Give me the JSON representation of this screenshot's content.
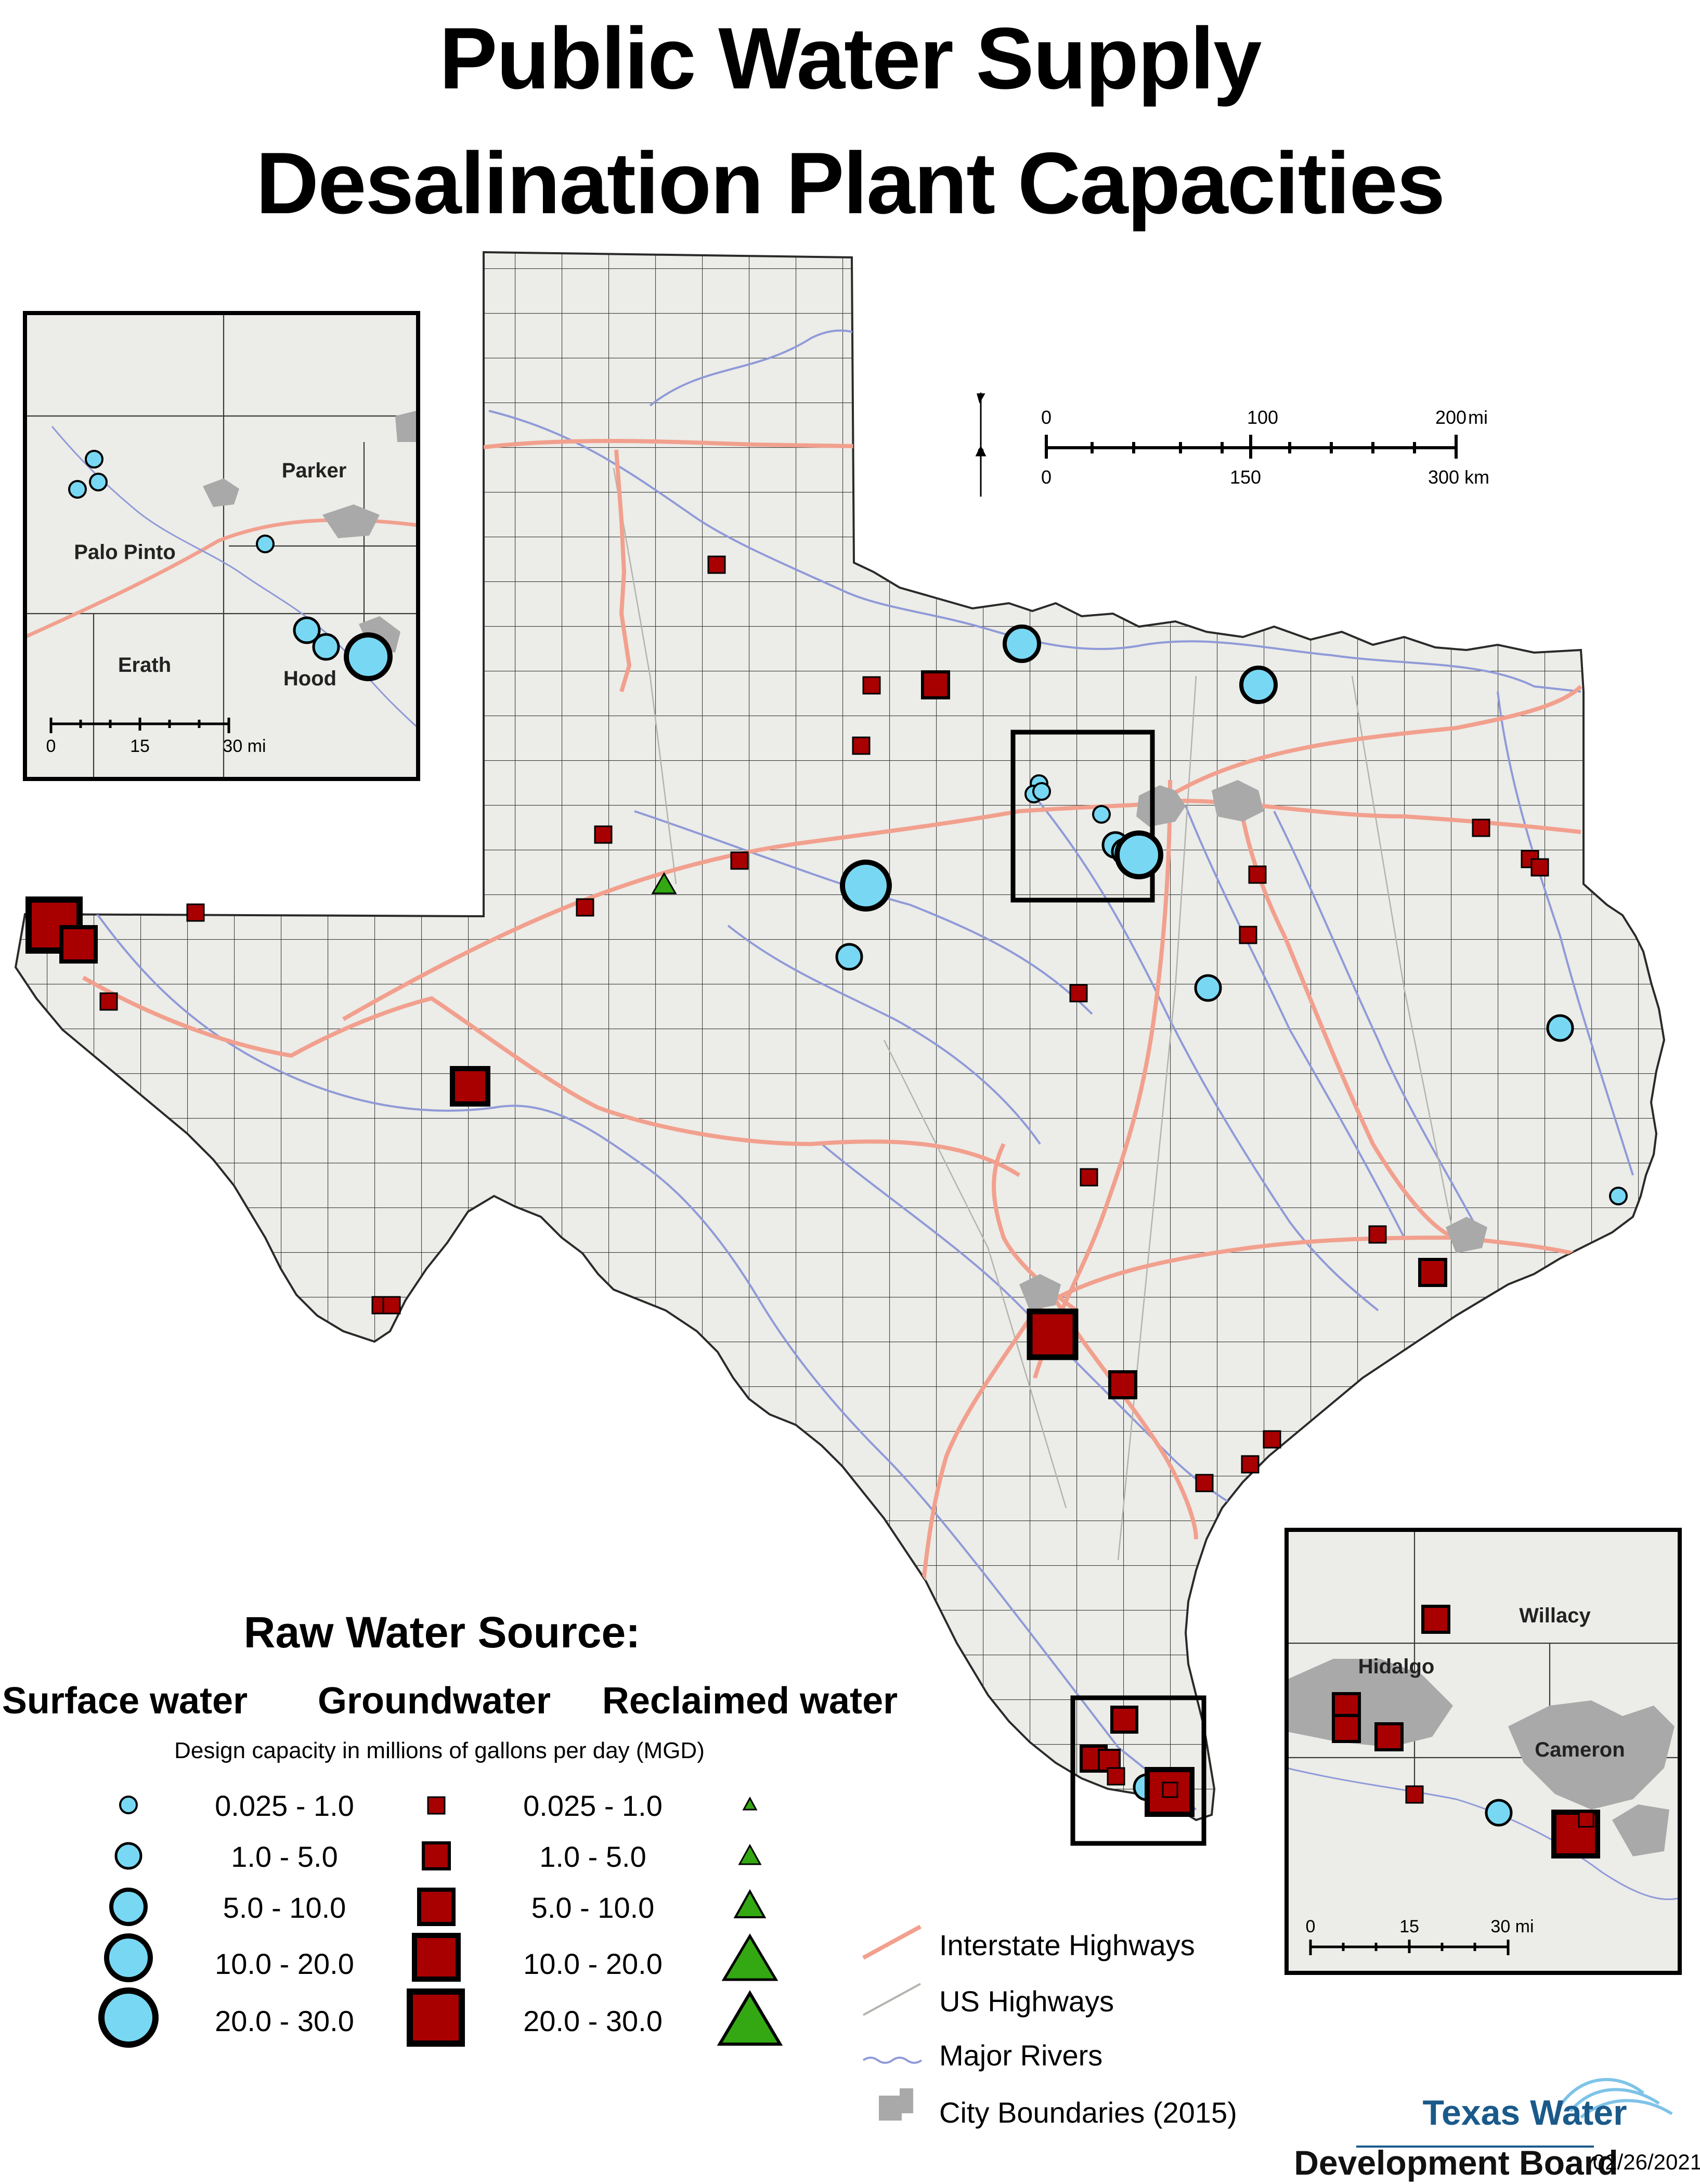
{
  "title": {
    "line1": "Public Water Supply",
    "line2": "Desalination Plant Capacities"
  },
  "colors": {
    "state_fill": "#ecece8",
    "county_line": "#3a3a3a",
    "interstate": "#f2a08e",
    "us_highway": "#b4b4ae",
    "river": "#8f9ad8",
    "city": "#a9a9a9",
    "surface_water": "#78d8f3",
    "groundwater": "#a80000",
    "reclaimed_water": "#33a812"
  },
  "scale_bar": {
    "mi": [
      "0",
      "100",
      "200"
    ],
    "mi_unit": "mi",
    "km": [
      "0",
      "150",
      "300 km"
    ]
  },
  "inset_dfw": {
    "counties": [
      "Parker",
      "Palo Pinto",
      "Erath",
      "Hood"
    ],
    "scale": [
      "0",
      "15",
      "30 mi"
    ]
  },
  "inset_rgv": {
    "counties": [
      "Willacy",
      "Hidalgo",
      "Cameron"
    ],
    "scale": [
      "0",
      "15",
      "30 mi"
    ]
  },
  "legend": {
    "heading": "Raw Water Source:",
    "columns": [
      "Surface water",
      "Groundwater",
      "Reclaimed water"
    ],
    "subheading": "Design capacity in millions of gallons per day (MGD)",
    "classes": [
      "0.025 - 1.0",
      "1.0 - 5.0",
      "5.0 - 10.0",
      "10.0 - 20.0",
      "20.0 - 30.0"
    ],
    "layers": [
      {
        "label": "Interstate Highways",
        "symbol": "interstate-line"
      },
      {
        "label": "US Highways",
        "symbol": "us-highway-line"
      },
      {
        "label": "Major Rivers",
        "symbol": "river-line"
      },
      {
        "label": "City Boundaries (2015)",
        "symbol": "city-polygon"
      }
    ]
  },
  "logo": {
    "line1": "Texas Water",
    "line2": "Development Board"
  },
  "date": "02/26/2021",
  "plants": {
    "surface_water_count": 20,
    "groundwater_count": 37,
    "reclaimed_water_count": 1
  }
}
